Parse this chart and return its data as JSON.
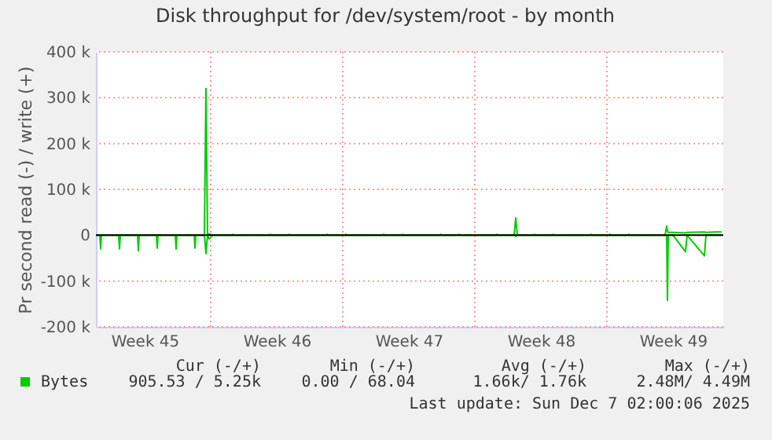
{
  "chart_data": {
    "type": "line",
    "title": "Disk throughput for /dev/system/root - by month",
    "ylabel": "Pr second read (-) / write (+)",
    "x": [
      "2025-11-03T22:00",
      "2025-11-04T03:00",
      "2025-11-04T04:00",
      "2025-11-04T05:00",
      "2025-11-05T03:00",
      "2025-11-05T04:00",
      "2025-11-05T05:00",
      "2025-11-06T03:00",
      "2025-11-06T04:00",
      "2025-11-06T05:00",
      "2025-11-07T03:00",
      "2025-11-07T04:00",
      "2025-11-07T05:00",
      "2025-11-08T03:00",
      "2025-11-08T04:00",
      "2025-11-08T05:00",
      "2025-11-09T03:00",
      "2025-11-09T04:00",
      "2025-11-09T05:00",
      "2025-11-09T16:00",
      "2025-11-09T18:00",
      "2025-11-09T20:00",
      "2025-11-09T22:00",
      "2025-11-10T03:00",
      "2025-11-11T03:00",
      "2025-11-11T04:00",
      "2025-11-11T05:00",
      "2025-11-13T03:00",
      "2025-11-13T04:00",
      "2025-11-13T05:00",
      "2025-11-14T03:00",
      "2025-11-14T04:00",
      "2025-11-14T05:00",
      "2025-11-16T03:00",
      "2025-11-16T04:00",
      "2025-11-16T05:00",
      "2025-11-17T03:00",
      "2025-11-17T04:00",
      "2025-11-17T05:00",
      "2025-11-19T03:00",
      "2025-11-19T04:00",
      "2025-11-19T05:00",
      "2025-11-20T03:00",
      "2025-11-20T04:00",
      "2025-11-20T05:00",
      "2025-11-22T03:00",
      "2025-11-22T04:00",
      "2025-11-22T05:00",
      "2025-11-23T03:00",
      "2025-11-23T04:00",
      "2025-11-23T05:00",
      "2025-11-25T03:00",
      "2025-11-25T04:00",
      "2025-11-25T05:00",
      "2025-11-26T02:00",
      "2025-11-26T04:00",
      "2025-11-26T06:00",
      "2025-11-27T03:00",
      "2025-11-27T04:00",
      "2025-11-27T05:00",
      "2025-11-28T03:00",
      "2025-11-28T04:00",
      "2025-11-28T05:00",
      "2025-11-30T03:00",
      "2025-11-30T04:00",
      "2025-11-30T05:00",
      "2025-12-01T03:00",
      "2025-12-01T04:00",
      "2025-12-01T05:00",
      "2025-12-02T03:00",
      "2025-12-02T04:00",
      "2025-12-02T05:00",
      "2025-12-04T02:00",
      "2025-12-04T04:00",
      "2025-12-04T05:00",
      "2025-12-04T06:00",
      "2025-12-04T12:00",
      "2025-12-05T04:00",
      "2025-12-05T06:00",
      "2025-12-06T04:00",
      "2025-12-06T06:00",
      "2025-12-06T18:00",
      "2025-12-07T02:00"
    ],
    "series": [
      {
        "name": "Bytes",
        "color": "#00cc00",
        "values": [
          0,
          0,
          0,
          0,
          0,
          0,
          0,
          0,
          0,
          0,
          0,
          0,
          0,
          0,
          0,
          0,
          0,
          0,
          0,
          0,
          320000,
          0,
          3000,
          0,
          0,
          2000,
          0,
          0,
          2000,
          0,
          0,
          2000,
          0,
          0,
          2000,
          0,
          0,
          2000,
          0,
          0,
          2000,
          0,
          0,
          2000,
          0,
          0,
          2000,
          0,
          0,
          2000,
          0,
          0,
          2000,
          0,
          0,
          38000,
          0,
          0,
          2000,
          0,
          0,
          2000,
          0,
          0,
          2000,
          0,
          0,
          2000,
          0,
          0,
          2000,
          0,
          0,
          20000,
          8000,
          6000,
          6000,
          5000,
          6000,
          7000,
          6000,
          7000,
          7000
        ]
      },
      {
        "color": "#00cc00",
        "values": [
          0,
          0,
          -30000,
          0,
          0,
          -30000,
          0,
          0,
          -34000,
          0,
          0,
          -28000,
          0,
          0,
          -30000,
          0,
          0,
          -28000,
          0,
          0,
          -40000,
          0,
          -8000,
          0,
          0,
          0,
          0,
          0,
          0,
          0,
          0,
          0,
          0,
          0,
          0,
          0,
          0,
          0,
          0,
          0,
          0,
          0,
          0,
          0,
          0,
          0,
          0,
          0,
          0,
          0,
          0,
          0,
          0,
          0,
          0,
          -3000,
          0,
          0,
          0,
          0,
          0,
          0,
          0,
          0,
          0,
          0,
          0,
          0,
          0,
          0,
          0,
          0,
          0,
          0,
          -142000,
          0,
          0,
          -36000,
          0,
          -45000,
          0,
          0,
          0
        ]
      }
    ],
    "xlim": [
      "2025-11-03T22:00",
      "2025-12-07T04:00"
    ],
    "xticks": [
      {
        "value": "2025-11-06T12:00",
        "label": "Week 45"
      },
      {
        "value": "2025-11-10",
        "label": null
      },
      {
        "value": "2025-11-13T12:00",
        "label": "Week 46"
      },
      {
        "value": "2025-11-17",
        "label": null
      },
      {
        "value": "2025-11-20T12:00",
        "label": "Week 47"
      },
      {
        "value": "2025-11-24",
        "label": null
      },
      {
        "value": "2025-11-27T12:00",
        "label": "Week 48"
      },
      {
        "value": "2025-12-01",
        "label": null
      },
      {
        "value": "2025-12-04T12:00",
        "label": "Week 49"
      }
    ],
    "ylim": [
      -200000,
      400000
    ],
    "yticks": [
      {
        "value": -200000,
        "label": "-200 k"
      },
      {
        "value": -100000,
        "label": "-100 k"
      },
      0,
      {
        "value": 100000,
        "label": "100 k"
      },
      {
        "value": 200000,
        "label": "200 k"
      },
      {
        "value": 300000,
        "label": "300 k"
      },
      {
        "value": 400000,
        "label": "400 k"
      }
    ],
    "ref_lines": [
      {
        "axis": "y",
        "value": 0,
        "color": "#000000"
      }
    ],
    "grid": true,
    "legend": "bottom left",
    "marker": "none",
    "line_style": "solid",
    "annotations": [
      "Cur (-/+)",
      "Min (-/+)",
      "Avg (-/+)",
      "Max (-/+)",
      "905.53 /  5.25k",
      "0.00 / 68.04",
      "1.66k/  1.76k",
      "2.48M/  4.49M",
      "Last update: Sun Dec  7 02:00:06 2025"
    ]
  }
}
